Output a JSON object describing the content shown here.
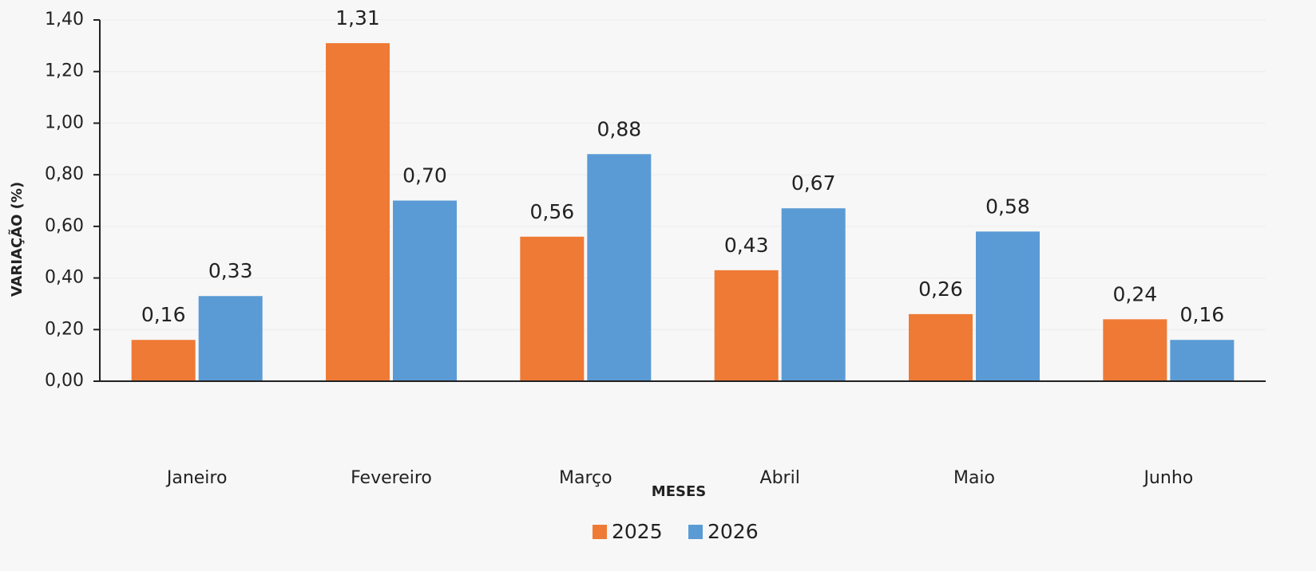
{
  "chart_data": {
    "type": "bar",
    "x_label": "MESES",
    "y_label": "VARIAÇÃO (%)",
    "categories": [
      "Janeiro",
      "Fevereiro",
      "Março",
      "Abril",
      "Maio",
      "Junho"
    ],
    "series": [
      {
        "name": "2025",
        "color": "#ef7a35",
        "values": [
          0.16,
          1.31,
          0.56,
          0.43,
          0.26,
          0.24
        ],
        "value_labels": [
          "0,16",
          "1,31",
          "0,56",
          "0,43",
          "0,26",
          "0,24"
        ]
      },
      {
        "name": "2026",
        "color": "#5b9bd5",
        "values": [
          0.33,
          0.7,
          0.88,
          0.67,
          0.58,
          0.16
        ],
        "value_labels": [
          "0,33",
          "0,70",
          "0,88",
          "0,67",
          "0,58",
          "0,16"
        ]
      }
    ],
    "ylim": [
      0,
      1.4
    ],
    "yticks": [
      {
        "value": 0,
        "label": "0,00"
      },
      {
        "value": 0.2,
        "label": "0,20"
      },
      {
        "value": 0.4,
        "label": "0,40"
      },
      {
        "value": 0.6,
        "label": "0,60"
      },
      {
        "value": 0.8,
        "label": "0,80"
      },
      {
        "value": 1.0,
        "label": "1,00"
      },
      {
        "value": 1.2,
        "label": "1,20"
      },
      {
        "value": 1.4,
        "label": "1,40"
      }
    ],
    "grid": true,
    "legend": "bottom"
  }
}
